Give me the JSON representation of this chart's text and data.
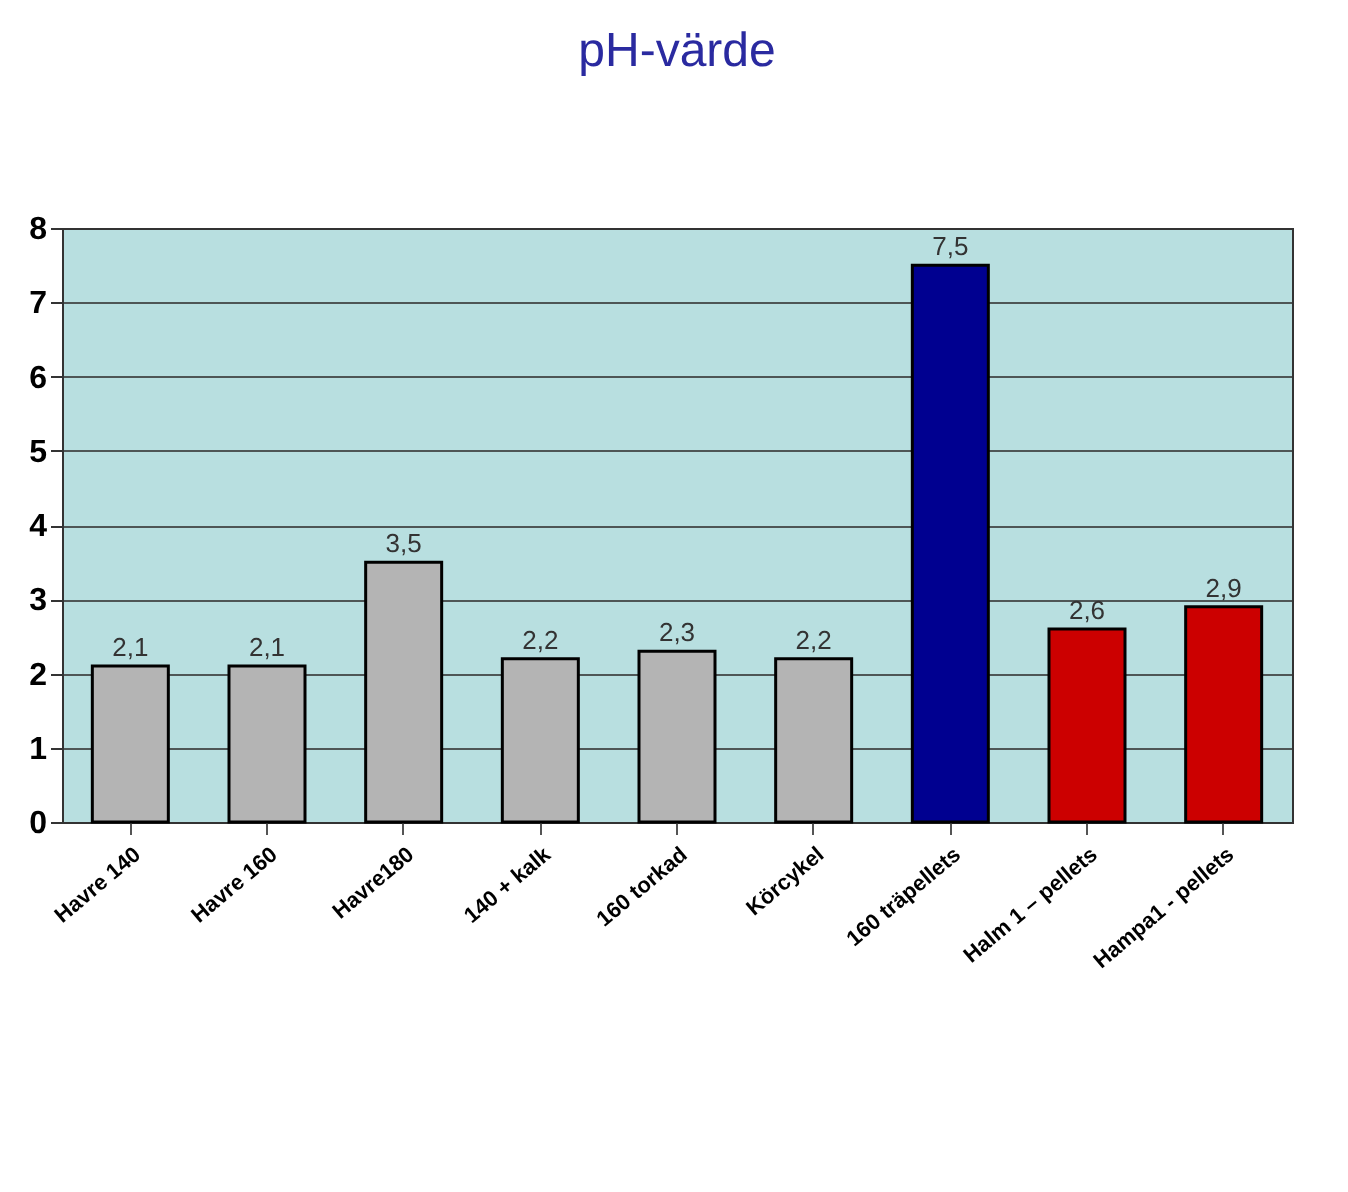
{
  "chart_data": {
    "type": "bar",
    "title": "pH-värde",
    "categories": [
      "Havre 140",
      "Havre 160",
      "Havre180",
      "140 + kalk",
      "160 torkad",
      "Körcykel",
      "160 träpellets",
      "Halm 1 – pellets",
      "Hampa1 - pellets"
    ],
    "values": [
      2.1,
      2.1,
      3.5,
      2.2,
      2.3,
      2.2,
      7.5,
      2.6,
      2.9
    ],
    "colors": [
      "#b4b4b4",
      "#b4b4b4",
      "#b4b4b4",
      "#b4b4b4",
      "#b4b4b4",
      "#b4b4b4",
      "#000090",
      "#cc0000",
      "#cc0000"
    ],
    "value_labels": [
      "2,1",
      "2,1",
      "3,5",
      "2,2",
      "2,3",
      "2,2",
      "7,5",
      "2,6",
      "2,9"
    ],
    "ylim": [
      0,
      8
    ],
    "yticks": [
      0,
      1,
      2,
      3,
      4,
      5,
      6,
      7,
      8
    ],
    "grid": "y"
  }
}
